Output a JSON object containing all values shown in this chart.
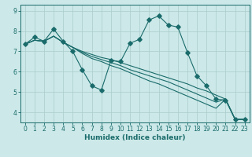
{
  "xlabel": "Humidex (Indice chaleur)",
  "bg_color": "#cce8e8",
  "grid_color": "#aacccc",
  "line_color": "#1a6b6b",
  "xlim": [
    -0.5,
    23.5
  ],
  "ylim": [
    3.5,
    9.3
  ],
  "xticks": [
    0,
    1,
    2,
    3,
    4,
    5,
    6,
    7,
    8,
    9,
    10,
    11,
    12,
    13,
    14,
    15,
    16,
    17,
    18,
    19,
    20,
    21,
    22,
    23
  ],
  "yticks": [
    4,
    5,
    6,
    7,
    8,
    9
  ],
  "lines": [
    {
      "x": [
        0,
        1,
        2,
        3,
        4,
        5,
        6,
        7,
        8,
        9,
        10,
        11,
        12,
        13,
        14,
        15,
        16,
        17,
        18,
        19,
        20,
        21,
        22,
        23
      ],
      "y": [
        7.35,
        7.7,
        7.5,
        8.1,
        7.5,
        7.0,
        6.1,
        5.3,
        5.1,
        6.55,
        6.5,
        7.4,
        7.6,
        8.55,
        8.75,
        8.3,
        8.2,
        6.95,
        5.8,
        5.3,
        4.65,
        4.6,
        3.65,
        3.65
      ],
      "marker": "D",
      "markersize": 2.8
    },
    {
      "x": [
        0,
        1,
        2,
        3,
        4,
        5,
        6,
        7,
        8,
        9,
        10,
        11,
        12,
        13,
        14,
        15,
        16,
        17,
        18,
        19,
        20,
        21,
        22,
        23
      ],
      "y": [
        7.35,
        7.55,
        7.5,
        7.75,
        7.45,
        7.2,
        7.0,
        6.85,
        6.7,
        6.6,
        6.45,
        6.3,
        6.15,
        6.0,
        5.85,
        5.7,
        5.55,
        5.4,
        5.2,
        5.05,
        4.85,
        4.65,
        3.65,
        3.65
      ],
      "marker": null,
      "markersize": 0
    },
    {
      "x": [
        0,
        1,
        2,
        3,
        4,
        5,
        6,
        7,
        8,
        9,
        10,
        11,
        12,
        13,
        14,
        15,
        16,
        17,
        18,
        19,
        20,
        21,
        22,
        23
      ],
      "y": [
        7.35,
        7.55,
        7.5,
        7.75,
        7.45,
        7.2,
        6.95,
        6.75,
        6.6,
        6.45,
        6.3,
        6.1,
        5.95,
        5.8,
        5.65,
        5.5,
        5.3,
        5.1,
        4.9,
        4.7,
        4.5,
        4.65,
        3.65,
        3.65
      ],
      "marker": null,
      "markersize": 0
    },
    {
      "x": [
        0,
        1,
        2,
        3,
        4,
        5,
        6,
        7,
        8,
        9,
        10,
        11,
        12,
        13,
        14,
        15,
        16,
        17,
        18,
        19,
        20,
        21,
        22,
        23
      ],
      "y": [
        7.35,
        7.55,
        7.5,
        7.75,
        7.45,
        7.2,
        6.9,
        6.65,
        6.5,
        6.3,
        6.15,
        5.95,
        5.75,
        5.55,
        5.4,
        5.2,
        5.0,
        4.8,
        4.6,
        4.4,
        4.2,
        4.65,
        3.65,
        3.65
      ],
      "marker": null,
      "markersize": 0
    }
  ]
}
